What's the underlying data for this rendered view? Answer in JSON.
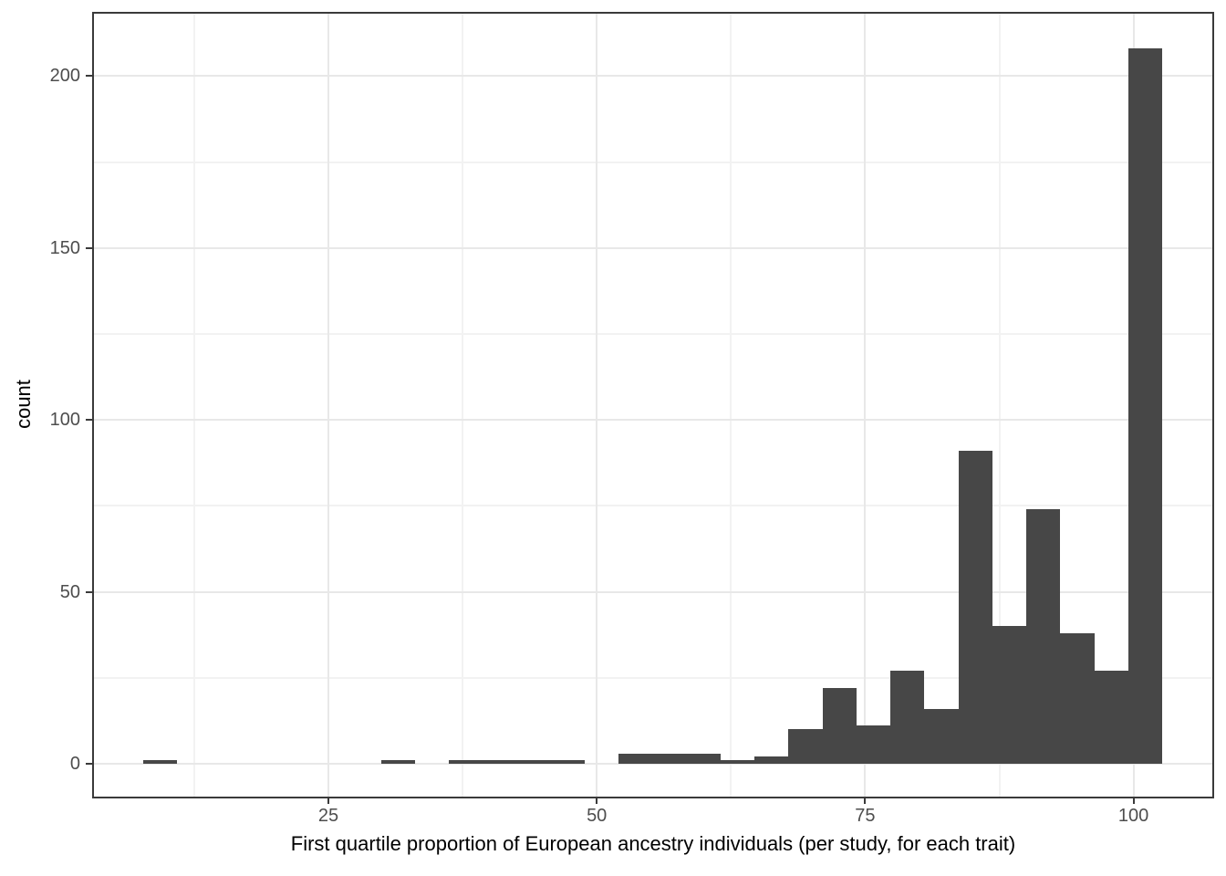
{
  "chart_data": {
    "type": "histogram",
    "title": "",
    "xlabel": "First quartile proportion of European ancestry individuals (per study, for each trait)",
    "ylabel": "count",
    "bin_start": 7.73,
    "bin_width": 3.165,
    "counts": [
      1,
      0,
      0,
      0,
      0,
      0,
      0,
      1,
      0,
      1,
      1,
      1,
      1,
      0,
      3,
      3,
      3,
      1,
      2,
      10,
      22,
      11,
      27,
      16,
      91,
      40,
      74,
      38,
      27,
      208
    ],
    "x_ticks": [
      25,
      50,
      75,
      100
    ],
    "y_ticks": [
      0,
      50,
      100,
      150,
      200
    ],
    "x_minor_ticks": [
      12.5,
      37.5,
      62.5,
      87.5
    ],
    "y_minor_ticks": [
      25,
      75,
      125,
      175
    ],
    "xlim": [
      3.07,
      107.43
    ],
    "ylim": [
      -9.6,
      218.4
    ],
    "grid": "major and minor, both axes",
    "legend": "none",
    "colors": {
      "bar_fill": "#474747",
      "panel_background": "#ffffff",
      "panel_border": "#3a3a3a",
      "grid_major": "#e8e8e8",
      "grid_minor": "#f2f2f2",
      "tick_mark": "#3a3a3a",
      "tick_label": "#4d4d4d",
      "axis_title": "#000000"
    }
  }
}
